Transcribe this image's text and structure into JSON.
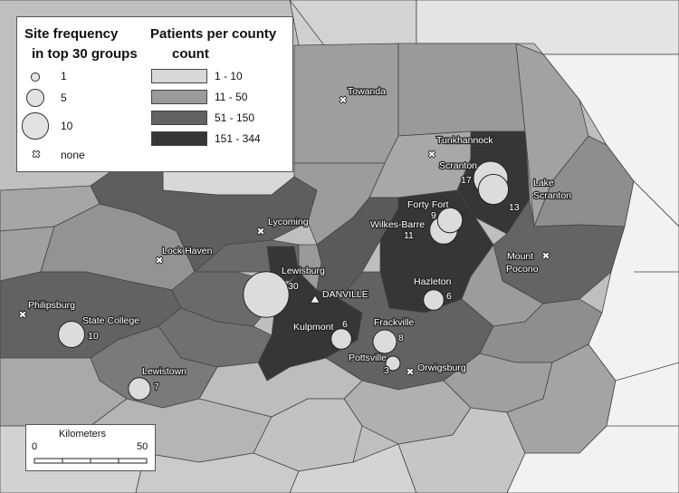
{
  "legend": {
    "site_title_line1": "Site frequency",
    "site_title_line2": "in top 30 groups",
    "site_items": [
      {
        "label": "1",
        "value": 1
      },
      {
        "label": "5",
        "value": 5
      },
      {
        "label": "10",
        "value": 10
      }
    ],
    "none_label": "none",
    "county_title_line1": "Patients per county",
    "county_title_line2": "count",
    "county_classes": [
      {
        "label": "1 - 10",
        "color": "#d8d8d8"
      },
      {
        "label": "11 - 50",
        "color": "#9a9a9a"
      },
      {
        "label": "51 - 150",
        "color": "#626262"
      },
      {
        "label": "151 - 344",
        "color": "#363636"
      }
    ]
  },
  "scalebar": {
    "title": "Kilometers",
    "min_label": "0",
    "max_label": "50"
  },
  "hospital": {
    "label": "DANVILLE"
  },
  "sites": [
    {
      "name": "Lewisburg",
      "count": "30",
      "value": 30
    },
    {
      "name": "Scranton",
      "count": "17",
      "value": 17
    },
    {
      "name": "Lake Scranton",
      "count": "13",
      "value": 13
    },
    {
      "name": "Wilkes-Barre",
      "count": "11",
      "value": 11
    },
    {
      "name": "State College",
      "count": "10",
      "value": 10
    },
    {
      "name": "Forty Fort",
      "count": "9",
      "value": 9
    },
    {
      "name": "Frackville",
      "count": "8",
      "value": 8
    },
    {
      "name": "Lewistown",
      "count": "7",
      "value": 7
    },
    {
      "name": "Hazleton",
      "count": "6",
      "value": 6
    },
    {
      "name": "Kulpmont",
      "count": "6",
      "value": 6
    },
    {
      "name": "Pottsville",
      "count": "3",
      "value": 3
    }
  ],
  "none_sites": [
    {
      "name": "Towanda"
    },
    {
      "name": "Tunkhannock"
    },
    {
      "name": "Lycoming"
    },
    {
      "name": "Lock Haven"
    },
    {
      "name": "Philipsburg"
    },
    {
      "name": "Mount Pocono"
    },
    {
      "name": "Orwigsburg"
    }
  ],
  "extra_labels": {
    "lake_scranton_line1": "Lake",
    "lake_scranton_line2": "Scranton",
    "mount_pocono_line1": "Mount",
    "mount_pocono_line2": "Pocono"
  }
}
